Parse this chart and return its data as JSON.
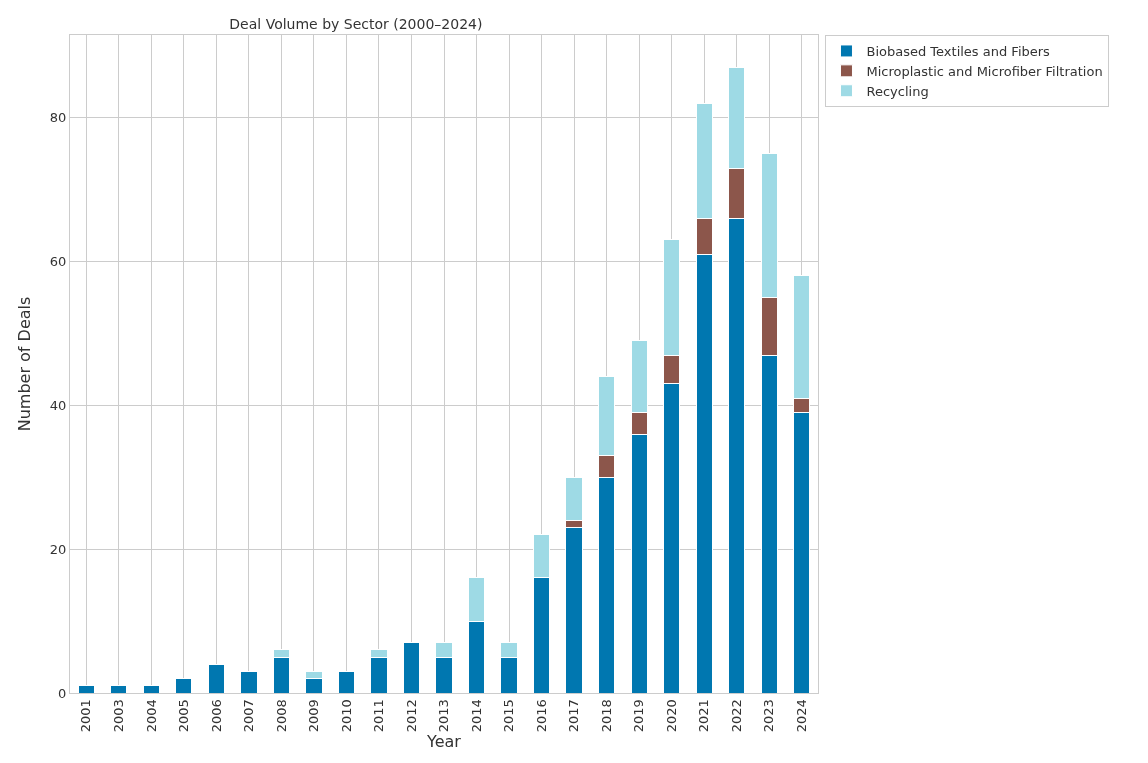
{
  "chart_data": {
    "type": "bar",
    "title": "Deal Volume by Sector (2000–2024)",
    "xlabel": "Year",
    "ylabel": "Number of Deals",
    "categories": [
      "2001",
      "2003",
      "2004",
      "2005",
      "2006",
      "2007",
      "2008",
      "2009",
      "2010",
      "2011",
      "2012",
      "2013",
      "2014",
      "2015",
      "2016",
      "2017",
      "2018",
      "2019",
      "2020",
      "2021",
      "2022",
      "2023",
      "2024"
    ],
    "series": [
      {
        "name": "Biobased Textiles and Fibers",
        "color": "#0077b0",
        "values": [
          1,
          1,
          1,
          2,
          4,
          3,
          5,
          2,
          3,
          5,
          7,
          5,
          10,
          5,
          16,
          23,
          30,
          36,
          43,
          61,
          66,
          47,
          39
        ]
      },
      {
        "name": "Microplastic and Microfiber Filtration",
        "color": "#8c564b",
        "values": [
          null,
          null,
          null,
          null,
          null,
          null,
          null,
          null,
          null,
          null,
          null,
          null,
          null,
          null,
          null,
          1,
          3,
          3,
          4,
          5,
          7,
          8,
          2
        ]
      },
      {
        "name": "Recycling",
        "color": "#9edae5",
        "values": [
          null,
          null,
          null,
          null,
          null,
          null,
          1,
          1,
          null,
          1,
          null,
          2,
          6,
          2,
          6,
          6,
          11,
          10,
          16,
          16,
          14,
          20,
          17
        ]
      }
    ],
    "stacked": true,
    "ylim": [
      0,
      91.5
    ],
    "yticks": [
      0,
      20,
      40,
      60,
      80
    ],
    "grid": true,
    "legend": "top right"
  }
}
